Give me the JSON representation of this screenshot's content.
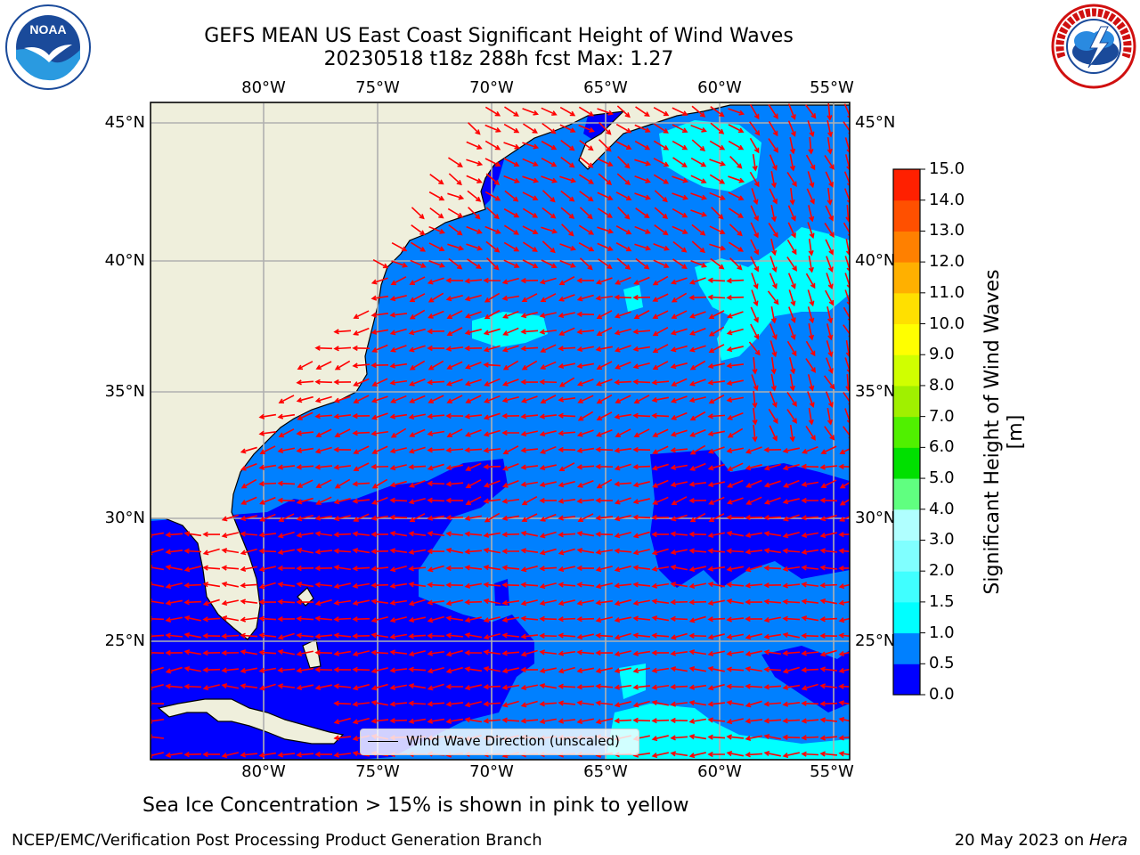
{
  "title": {
    "line1": "GEFS MEAN US East Coast Significant Height of Wind Waves",
    "line2": "20230518 t18z 288h fcst   Max: 1.27"
  },
  "map": {
    "lon_labels": [
      "80°W",
      "75°W",
      "70°W",
      "65°W",
      "60°W",
      "55°W"
    ],
    "lat_labels": [
      "45°N",
      "40°N",
      "35°N",
      "30°N",
      "25°N"
    ],
    "legend_label": "Wind Wave Direction (unscaled)",
    "colors": {
      "land": "#efefdc",
      "coast": "#000000",
      "arrow": "#ff0000",
      "grid": "#b0b0b0"
    }
  },
  "colorbar": {
    "title": "Significant Height of Wind Waves [m]",
    "ticks": [
      "0.0",
      "0.5",
      "1.0",
      "1.5",
      "2.0",
      "3.0",
      "4.0",
      "5.0",
      "6.0",
      "7.0",
      "8.0",
      "9.0",
      "10.0",
      "11.0",
      "12.0",
      "13.0",
      "14.0",
      "15.0"
    ],
    "colors": [
      "#0000ff",
      "#0080ff",
      "#00ffff",
      "#40ffff",
      "#80ffff",
      "#b0ffff",
      "#60ff80",
      "#00e000",
      "#50f000",
      "#a0f000",
      "#d0ff00",
      "#ffff00",
      "#ffe000",
      "#ffb000",
      "#ff8000",
      "#ff5000",
      "#ff2000",
      "#ff0000"
    ]
  },
  "note": "Sea Ice Concentration > 15% is shown in pink to yellow",
  "footer": {
    "left": "NCEP/EMC/Verification Post Processing Product Generation Branch",
    "right_date": "20 May 2023 on ",
    "right_host": "Hera"
  },
  "logos": {
    "noaa_text": "NOAA",
    "nws_text": "NATIONAL WEATHER SERVICE"
  }
}
